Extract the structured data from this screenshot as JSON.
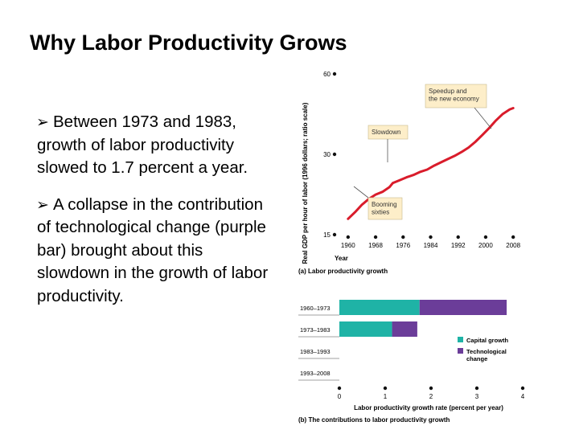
{
  "slide": {
    "title": "Why Labor Productivity Grows",
    "bullets": [
      "Between 1973 and 1983, growth of labor productivity slowed to 1.7 percent a year.",
      "A collapse in the contribution of technological change (purple bar) brought about this slowdown in the growth of labor productivity."
    ]
  },
  "chart_data": [
    {
      "type": "line",
      "caption": "(a) Labor productivity growth",
      "ylabel": "Real GDP per hour of labor (1996 dollars; ratio scale)",
      "xlabel": "Year",
      "y_scale": "log",
      "ylim": [
        15,
        60
      ],
      "y_ticks": [
        15,
        30,
        60
      ],
      "x_ticks": [
        1960,
        1968,
        1976,
        1984,
        1992,
        2000,
        2008
      ],
      "xlim": [
        1957,
        2011
      ],
      "annotations": [
        "Speedup and the new economy",
        "Slowdown",
        "Booming sixties"
      ],
      "series": [
        {
          "color": "#d91c2b",
          "x": [
            1960,
            1962,
            1964,
            1966,
            1968,
            1970,
            1972,
            1973,
            1975,
            1977,
            1979,
            1981,
            1983,
            1985,
            1987,
            1989,
            1991,
            1993,
            1995,
            1997,
            1999,
            2001,
            2003,
            2005,
            2007,
            2008
          ],
          "y": [
            17.2,
            18.2,
            19.4,
            20.4,
            21.2,
            21.7,
            22.6,
            23.4,
            24.0,
            24.6,
            25.1,
            25.8,
            26.3,
            27.2,
            28.0,
            28.8,
            29.6,
            30.6,
            31.8,
            33.4,
            35.4,
            37.6,
            40.2,
            42.5,
            44.2,
            44.7
          ]
        }
      ]
    },
    {
      "type": "bar",
      "orientation": "horizontal",
      "stacked": true,
      "caption": "(b) The contributions to labor productivity growth",
      "xlabel": "Labor productivity growth rate (percent per year)",
      "xlim": [
        0,
        4
      ],
      "x_ticks": [
        0,
        1,
        2,
        3,
        4
      ],
      "categories": [
        "1960–1973",
        "1973–1983",
        "1983–1993",
        "1993–2008"
      ],
      "legend_position": "right",
      "series": [
        {
          "name": "Capital growth",
          "color": "#1fb3a6",
          "values": [
            1.75,
            1.15,
            0,
            0
          ]
        },
        {
          "name": "Technological change",
          "color": "#6b3d99",
          "values": [
            1.9,
            0.55,
            0,
            0
          ]
        }
      ]
    }
  ]
}
